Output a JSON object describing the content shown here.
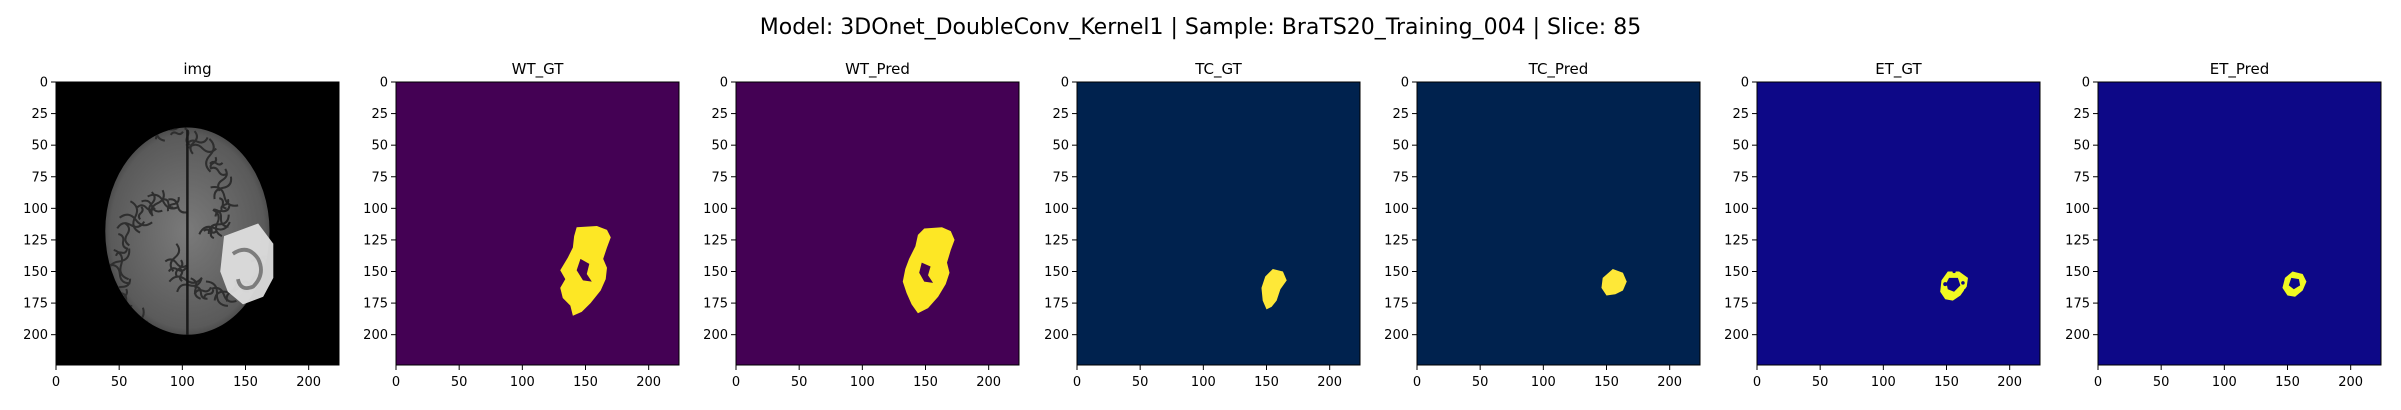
{
  "title": "Model: 3DOnet_DoubleConv_Kernel1 | Sample: BraTS20_Training_004 | Slice: 85",
  "axes": {
    "x_ticks": [
      "0",
      "50",
      "100",
      "150",
      "200"
    ],
    "y_ticks": [
      "0",
      "25",
      "50",
      "75",
      "100",
      "125",
      "150",
      "175",
      "200"
    ],
    "range": [
      0,
      224
    ]
  },
  "panels": [
    {
      "title": "img",
      "kind": "mri",
      "bg": "#000000"
    },
    {
      "title": "WT_GT",
      "kind": "mask",
      "mask": "wt_gt",
      "bg": "#440154",
      "fg": "#fde725"
    },
    {
      "title": "WT_Pred",
      "kind": "mask",
      "mask": "wt_pred",
      "bg": "#440154",
      "fg": "#fde725"
    },
    {
      "title": "TC_GT",
      "kind": "mask",
      "mask": "tc_gt",
      "bg": "#00224e",
      "fg": "#fee838"
    },
    {
      "title": "TC_Pred",
      "kind": "mask",
      "mask": "tc_pred",
      "bg": "#00224e",
      "fg": "#fee838"
    },
    {
      "title": "ET_GT",
      "kind": "mask",
      "mask": "et_gt",
      "bg": "#0d0887",
      "fg": "#f0f921"
    },
    {
      "title": "ET_Pred",
      "kind": "mask",
      "mask": "et_pred",
      "bg": "#0d0887",
      "fg": "#f0f921"
    }
  ]
}
